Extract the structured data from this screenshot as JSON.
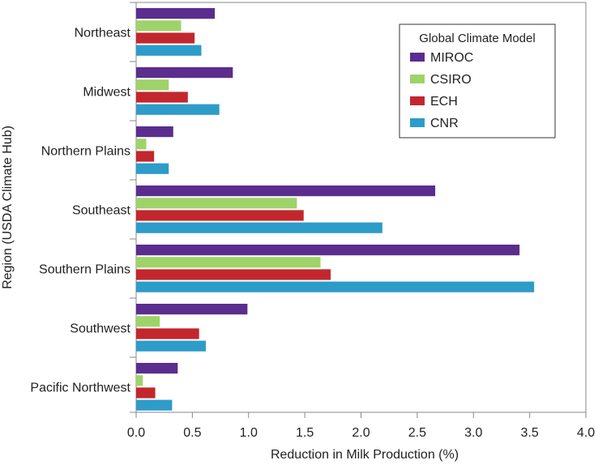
{
  "chart_data": {
    "type": "bar",
    "orientation": "horizontal",
    "xlabel": "Reduction in Milk Production (%)",
    "ylabel": "Region (USDA Climate Hub)",
    "xlim": [
      0,
      4.0
    ],
    "xticks": [
      "0.0",
      "0.5",
      "1.0",
      "1.5",
      "2.0",
      "2.5",
      "3.0",
      "3.5",
      "4.0"
    ],
    "grid": false,
    "legend": {
      "title": "Global Climate Model",
      "placement": "top-right"
    },
    "categories": [
      "Northeast",
      "Midwest",
      "Northern Plains",
      "Southeast",
      "Southern Plains",
      "Southwest",
      "Pacific Northwest"
    ],
    "series": [
      {
        "name": "MIROC",
        "color": "#5b2d8e",
        "values": [
          0.7,
          0.86,
          0.33,
          2.66,
          3.41,
          0.99,
          0.37
        ]
      },
      {
        "name": "CSIRO",
        "color": "#9ed36a",
        "values": [
          0.4,
          0.29,
          0.09,
          1.43,
          1.64,
          0.21,
          0.06
        ]
      },
      {
        "name": "ECH",
        "color": "#c2272d",
        "values": [
          0.52,
          0.46,
          0.16,
          1.49,
          1.73,
          0.56,
          0.17
        ]
      },
      {
        "name": "CNR",
        "color": "#2d9cc9",
        "values": [
          0.58,
          0.74,
          0.29,
          2.19,
          3.54,
          0.62,
          0.32
        ]
      }
    ]
  }
}
